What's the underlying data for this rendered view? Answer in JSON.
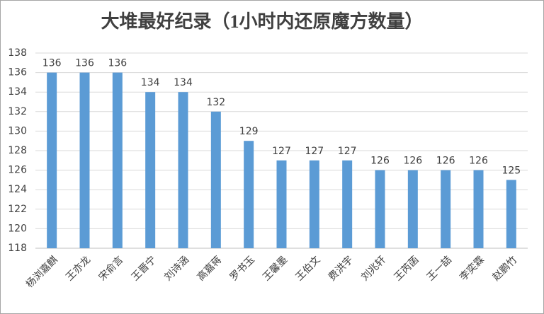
{
  "chart_data": {
    "type": "bar",
    "title": "大堆最好纪录（1小时内还原魔方数量）",
    "categories": [
      "杨浏嘉麒",
      "王亦龙",
      "宋俞言",
      "王晋宁",
      "刘诗涵",
      "高嘉蒋",
      "罗书玉",
      "王馨墨",
      "王伯文",
      "费洪宇",
      "刘兆轩",
      "王芮菡",
      "王一喆",
      "李奕霖",
      "赵鹏竹"
    ],
    "values": [
      136,
      136,
      136,
      134,
      134,
      132,
      129,
      127,
      127,
      127,
      126,
      126,
      126,
      126,
      125
    ],
    "color": "#5b9bd5",
    "ylim": [
      118,
      138
    ],
    "yticks": [
      118,
      120,
      122,
      124,
      126,
      128,
      130,
      132,
      134,
      136,
      138
    ],
    "grid": true
  }
}
